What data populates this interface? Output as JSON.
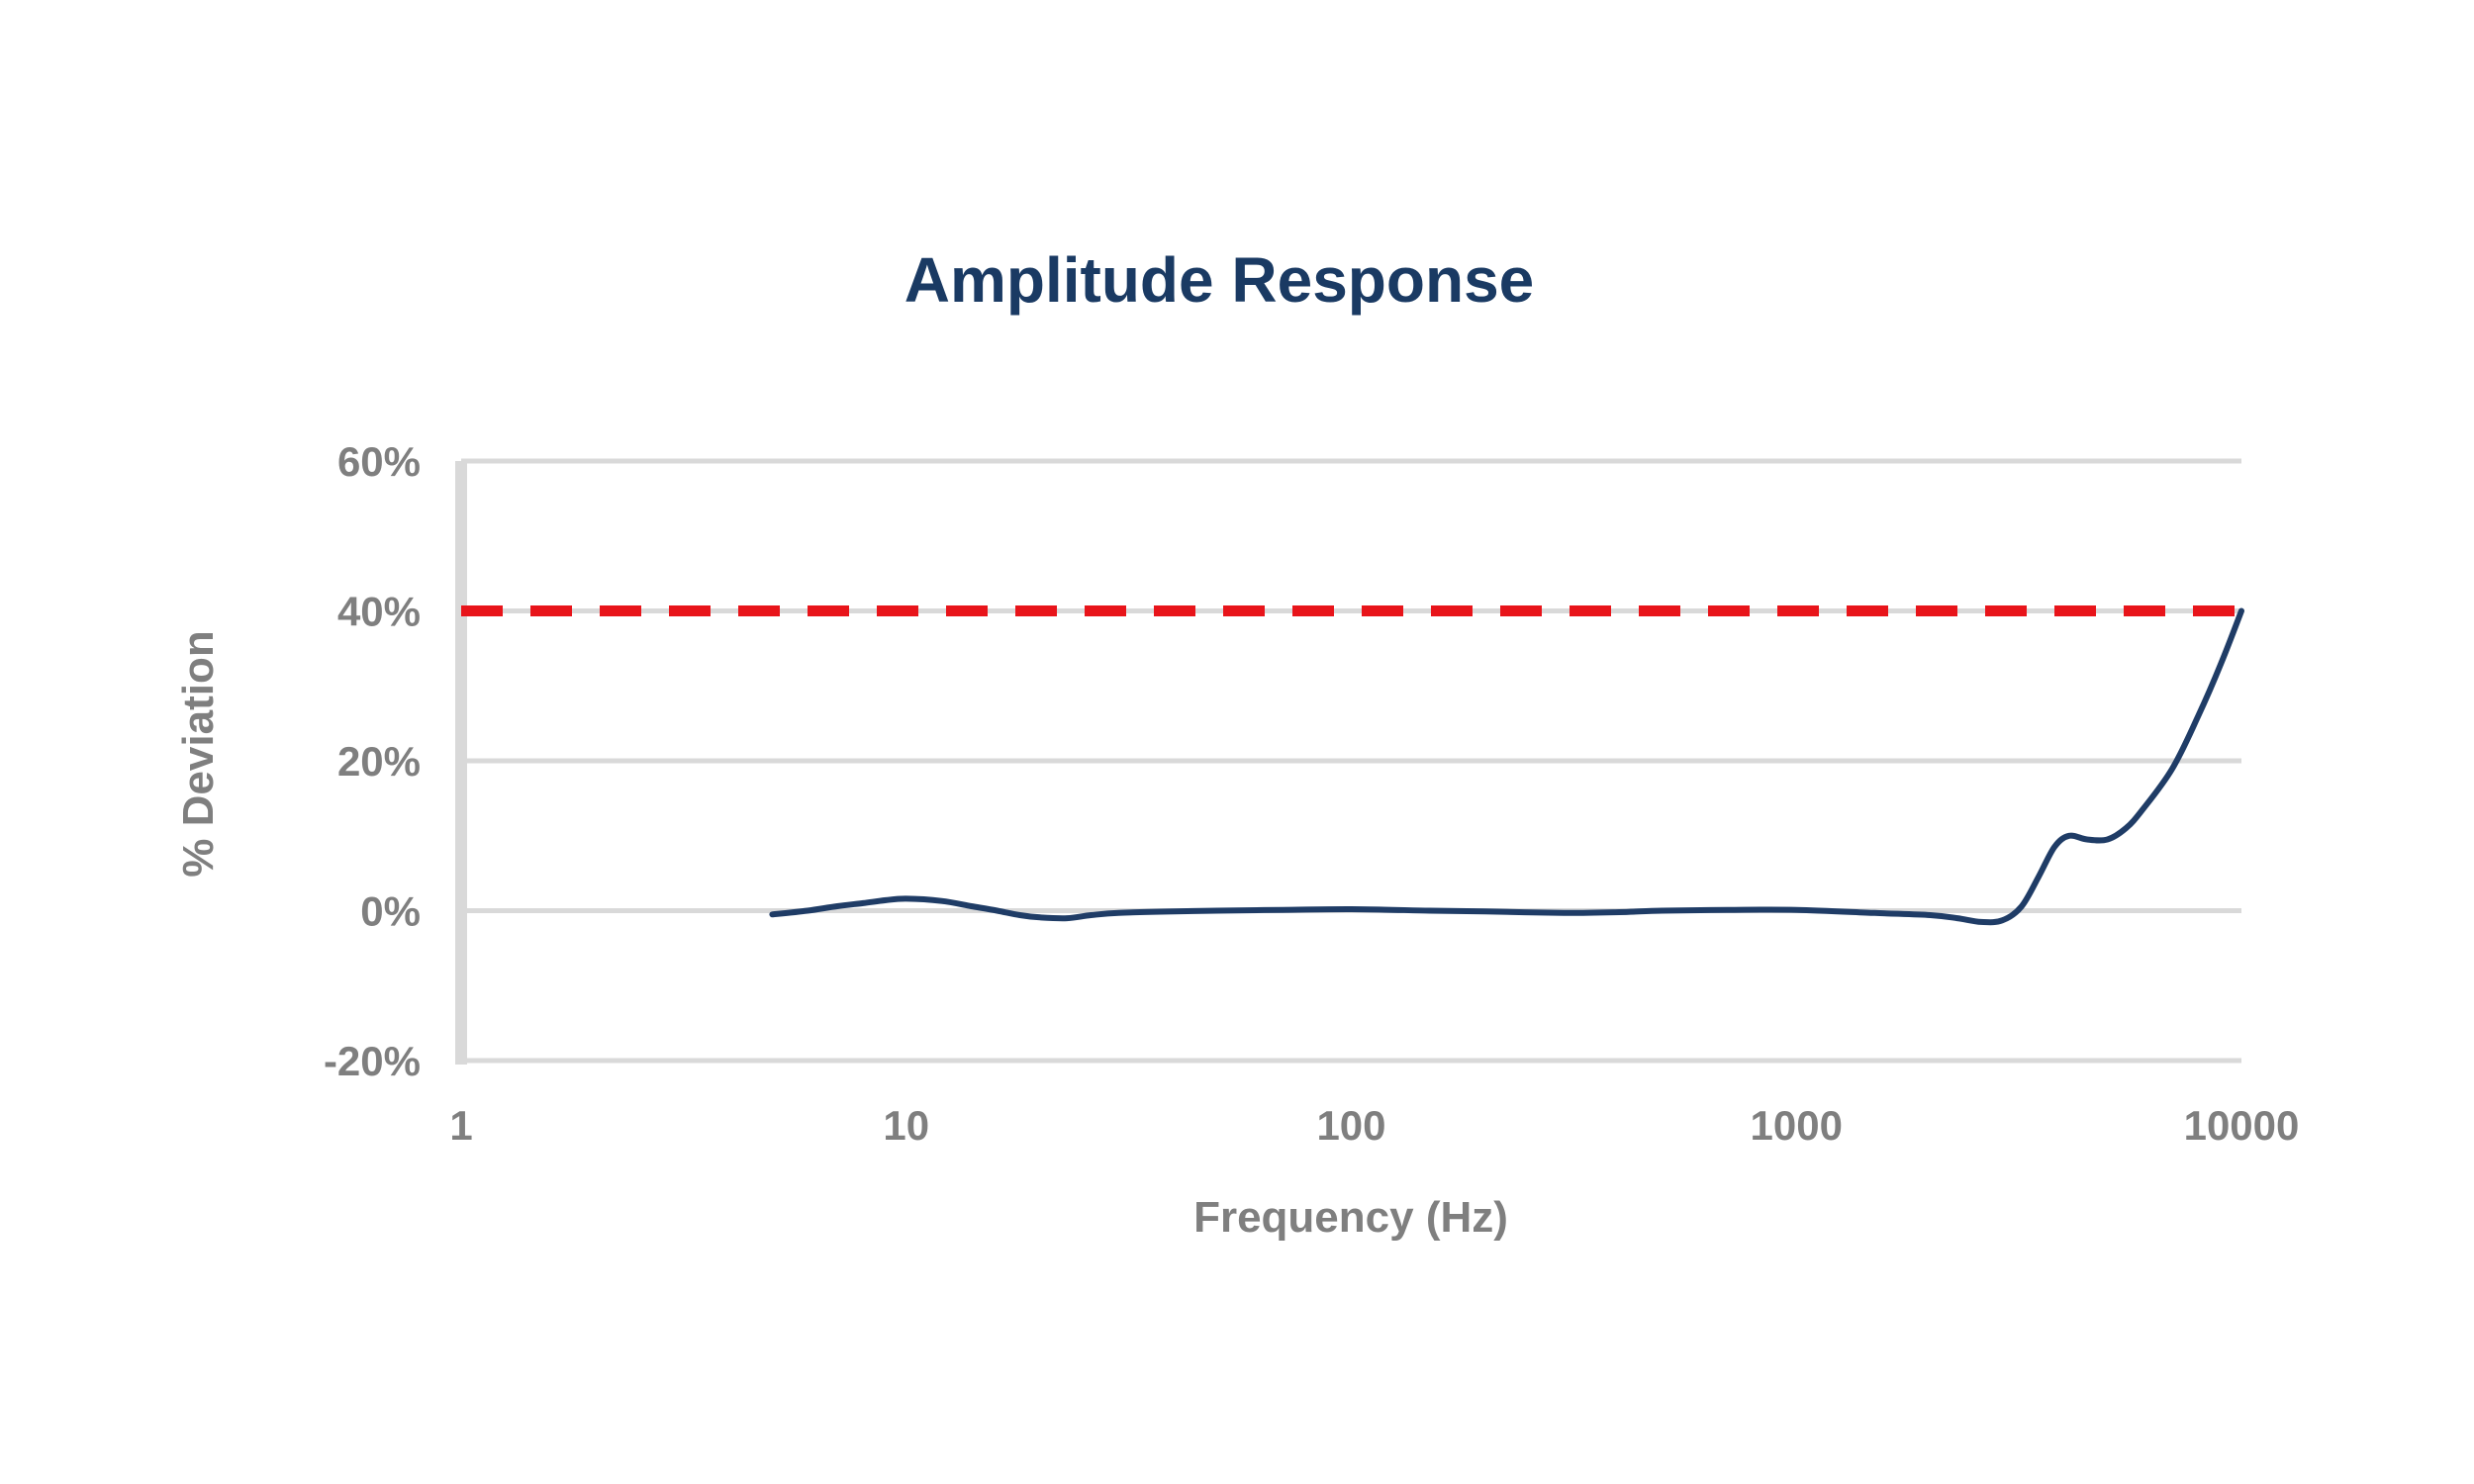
{
  "chart_data": {
    "type": "line",
    "title": "Amplitude Response",
    "xlabel": "Frequency (Hz)",
    "ylabel": "% Deviation",
    "x_scale": "log",
    "xlim": [
      1,
      10000
    ],
    "ylim": [
      -20,
      60
    ],
    "x_ticks": [
      1,
      10,
      100,
      1000,
      10000
    ],
    "x_tick_labels": [
      "1",
      "10",
      "100",
      "1000",
      "10000"
    ],
    "y_ticks": [
      -20,
      0,
      20,
      40,
      60
    ],
    "y_tick_labels": [
      "-20%",
      "0%",
      "20%",
      "40%",
      "60%"
    ],
    "grid": "horizontal",
    "series": [
      {
        "role": "measured",
        "color": "#1f3c66",
        "x": [
          5,
          6,
          7,
          8,
          9,
          10,
          12,
          14,
          16,
          18,
          20,
          23,
          26,
          30,
          40,
          50,
          70,
          100,
          150,
          200,
          300,
          400,
          500,
          700,
          1000,
          1500,
          2000,
          2300,
          2600,
          2900,
          3200,
          3500,
          3800,
          4100,
          4500,
          5000,
          5500,
          6000,
          7000,
          8000,
          9000,
          10000
        ],
        "y": [
          -0.5,
          0,
          0.6,
          1.0,
          1.4,
          1.6,
          1.3,
          0.6,
          0,
          -0.6,
          -0.9,
          -1.0,
          -0.6,
          -0.3,
          -0.1,
          0,
          0.1,
          0.2,
          0,
          -0.1,
          -0.3,
          -0.2,
          0,
          0.1,
          0.1,
          -0.3,
          -0.6,
          -1.0,
          -1.5,
          -1.3,
          0.5,
          4.5,
          8.5,
          10.0,
          9.5,
          9.5,
          11.0,
          13.5,
          19.0,
          26.0,
          33.0,
          40.0
        ]
      },
      {
        "role": "limit",
        "color": "#e8141a",
        "style": "dashed",
        "x": [
          1,
          10000
        ],
        "y": [
          40,
          40
        ]
      }
    ]
  }
}
